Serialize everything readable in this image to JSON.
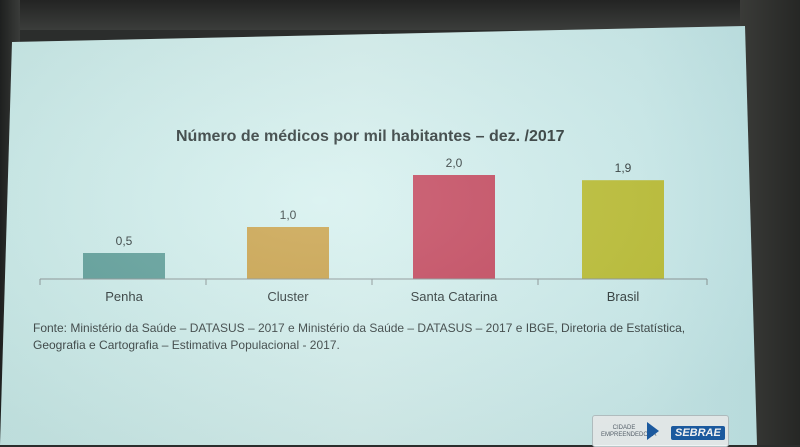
{
  "chart_data": {
    "type": "bar",
    "title": "Número de médicos por mil habitantes – dez. /2017",
    "xlabel": "",
    "ylabel": "",
    "categories": [
      "Penha",
      "Cluster",
      "Santa Catarina",
      "Brasil"
    ],
    "values": [
      0.5,
      1.0,
      2.0,
      1.9
    ],
    "value_labels": [
      "0,5",
      "1,0",
      "2,0",
      "1,9"
    ],
    "colors": [
      "#5e9f9a",
      "#c9a24a",
      "#c4485e",
      "#bcbf34"
    ],
    "ylim": [
      0,
      2.0
    ],
    "grid": false,
    "legend": "none"
  },
  "source_text": "Fonte: Ministério da Saúde – DATASUS – 2017 e Ministério da Saúde – DATASUS – 2017 e IBGE, Diretoria de Estatística, Geografia e Cartografia – Estimativa Populacional - 2017.",
  "logo": {
    "small_text": "CIDADE EMPREENDEDORA",
    "brand_text": "SEBRAE"
  }
}
